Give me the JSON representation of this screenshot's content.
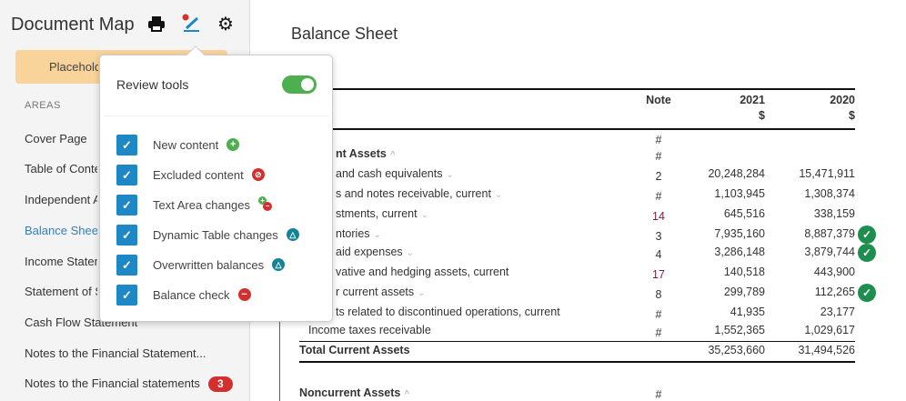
{
  "sidebar": {
    "title": "Document Map",
    "placeholder": "Placeholder",
    "areas_label": "AREAS",
    "items": [
      {
        "label": "Cover Page"
      },
      {
        "label": "Table of Contents"
      },
      {
        "label": "Independent Auditor's Report"
      },
      {
        "label": "Balance Sheet"
      },
      {
        "label": "Income Statement"
      },
      {
        "label": "Statement of Shareholders' Equity"
      },
      {
        "label": "Cash Flow Statement"
      },
      {
        "label": "Notes to the Financial Statement..."
      },
      {
        "label": "Notes to the Financial statements",
        "badge": "3"
      }
    ],
    "icons": [
      "print-icon",
      "review-pen-icon",
      "gear-icon"
    ]
  },
  "popup": {
    "title": "Review tools",
    "toggle_on": true,
    "options": [
      {
        "label": "New content",
        "checked": true,
        "icon": "plus-circle-icon"
      },
      {
        "label": "Excluded content",
        "checked": true,
        "icon": "eye-slash-icon"
      },
      {
        "label": "Text Area changes",
        "checked": true,
        "icon": "plus-minus-icon"
      },
      {
        "label": "Dynamic Table changes",
        "checked": true,
        "icon": "triangle-icon"
      },
      {
        "label": "Overwritten balances",
        "checked": true,
        "icon": "triangle-icon"
      },
      {
        "label": "Balance check",
        "checked": true,
        "icon": "minus-circle-icon"
      }
    ]
  },
  "main": {
    "title": "Balance Sheet",
    "headers": {
      "note": "Note",
      "y2021": "2021",
      "y2020": "2020",
      "currency": "$"
    },
    "rows": [
      {
        "label": "",
        "note": "#",
        "v2021": "",
        "v2020": ""
      },
      {
        "label": "nt Assets",
        "note": "#",
        "v2021": "",
        "v2020": "",
        "bold": true
      },
      {
        "label": "and cash equivalents",
        "note": "2",
        "v2021": "20,248,284",
        "v2020": "15,471,911"
      },
      {
        "label": "s and notes receivable, current",
        "note": "#",
        "v2021": "1,103,945",
        "v2020": "1,308,374"
      },
      {
        "label": "stments, current",
        "note": "14",
        "v2021": "645,516",
        "v2020": "338,159"
      },
      {
        "label": "ntories",
        "note": "3",
        "v2021": "7,935,160",
        "v2020": "8,887,379",
        "check": true
      },
      {
        "label": "aid expenses",
        "note": "4",
        "v2021": "3,286,148",
        "v2020": "3,879,744",
        "check": true
      },
      {
        "label": "vative and hedging assets, current",
        "note": "17",
        "v2021": "140,518",
        "v2020": "443,900"
      },
      {
        "label": "r current assets",
        "note": "8",
        "v2021": "299,789",
        "v2020": "112,265",
        "check": true
      },
      {
        "label": "ts related to discontinued operations, current",
        "note": "#",
        "v2021": "41,935",
        "v2020": "23,177"
      },
      {
        "label": "Income taxes receivable",
        "note": "#",
        "v2021": "1,552,365",
        "v2020": "1,029,617"
      }
    ],
    "total": {
      "label": "Total Current Assets",
      "v2021": "35,253,660",
      "v2020": "31,494,526"
    },
    "noncurrent": {
      "label": "Noncurrent Assets",
      "note": "#"
    }
  },
  "colors": {
    "accent": "#1e88c7",
    "toggle": "#4caf50",
    "check": "#1e8e4e",
    "badge": "#d32f2f",
    "placeholder": "#f9d49a"
  }
}
